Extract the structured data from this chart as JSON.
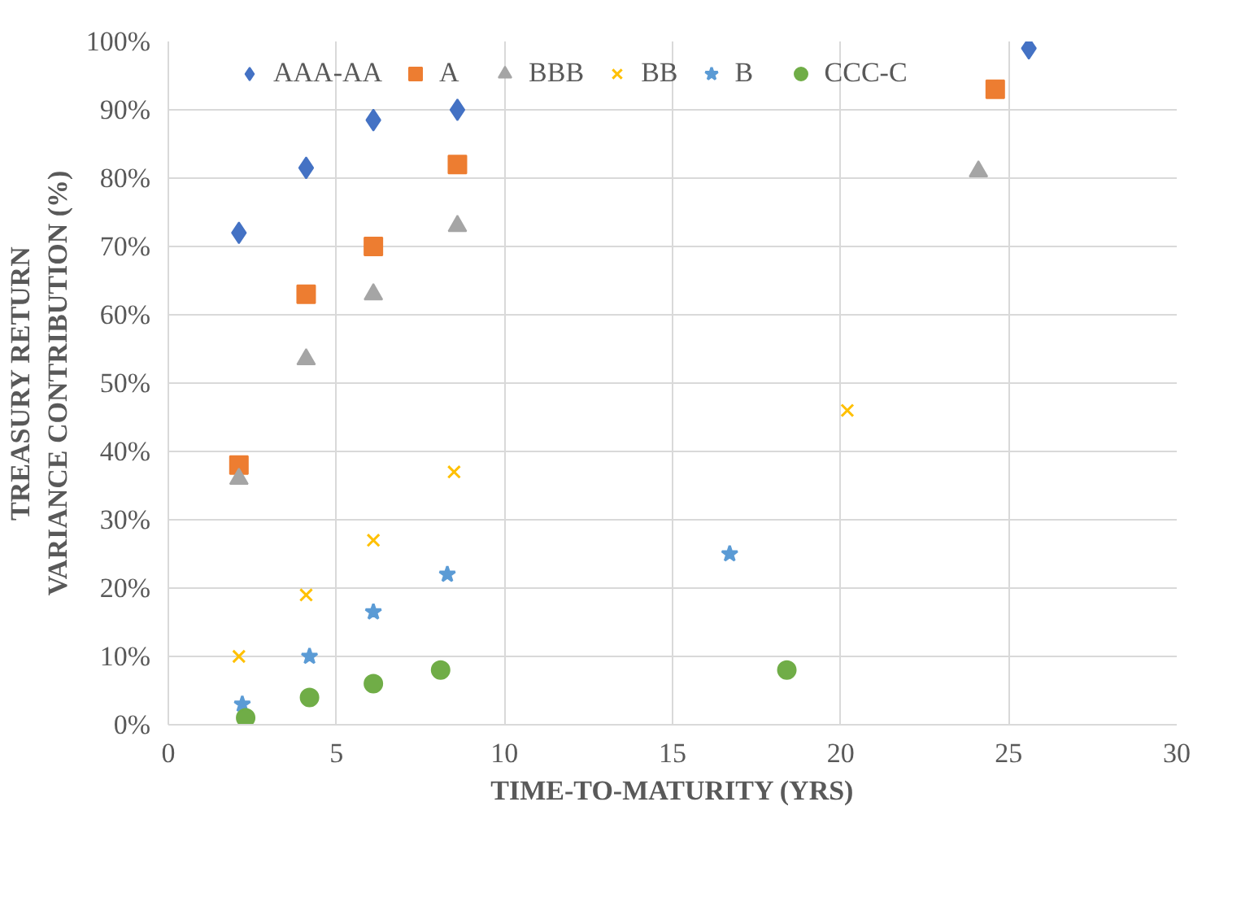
{
  "chart_data": {
    "type": "scatter",
    "xlabel": "TIME-TO-MATURITY (YRS)",
    "ylabel": "TREASURY RETURN\nVARIANCE CONTRIBUTION (%)",
    "xlim": [
      0,
      30
    ],
    "xticks": [
      0,
      5,
      10,
      15,
      20,
      25,
      30
    ],
    "ylim": [
      0,
      100
    ],
    "yticks": [
      {
        "value": 0,
        "label": "0%"
      },
      {
        "value": 10,
        "label": "10%"
      },
      {
        "value": 20,
        "label": "20%"
      },
      {
        "value": 30,
        "label": "30%"
      },
      {
        "value": 40,
        "label": "40%"
      },
      {
        "value": 50,
        "label": "50%"
      },
      {
        "value": 60,
        "label": "60%"
      },
      {
        "value": 70,
        "label": "70%"
      },
      {
        "value": 80,
        "label": "80%"
      },
      {
        "value": 90,
        "label": "90%"
      },
      {
        "value": 100,
        "label": "100%"
      }
    ],
    "grid": true,
    "legend": "top",
    "series": [
      {
        "name": "AAA-AA",
        "color": "#4472c4",
        "marker": "diamond",
        "x": [
          2.1,
          4.1,
          6.1,
          8.6,
          25.6
        ],
        "values": [
          72,
          81.5,
          88.5,
          90,
          99
        ]
      },
      {
        "name": "A",
        "color": "#ed7d31",
        "marker": "square",
        "x": [
          2.1,
          4.1,
          6.1,
          8.6,
          24.6
        ],
        "values": [
          38,
          63,
          70,
          82,
          93
        ]
      },
      {
        "name": "BBB",
        "color": "#a5a5a5",
        "marker": "triangle",
        "x": [
          2.1,
          4.1,
          6.1,
          8.6,
          24.1
        ],
        "values": [
          36,
          53.5,
          63,
          73,
          81
        ]
      },
      {
        "name": "BB",
        "color": "#ffc000",
        "marker": "cross",
        "x": [
          2.1,
          4.1,
          6.1,
          8.5,
          20.2
        ],
        "values": [
          10,
          19,
          27,
          37,
          46
        ]
      },
      {
        "name": "B",
        "color": "#5b9bd5",
        "marker": "star",
        "x": [
          2.2,
          4.2,
          6.1,
          8.3,
          16.7
        ],
        "values": [
          3,
          10,
          16.5,
          22,
          25
        ]
      },
      {
        "name": "CCC-C",
        "color": "#70ad47",
        "marker": "circle",
        "x": [
          2.3,
          4.2,
          6.1,
          8.1,
          18.4
        ],
        "values": [
          1,
          4,
          6,
          8,
          8
        ]
      }
    ]
  }
}
